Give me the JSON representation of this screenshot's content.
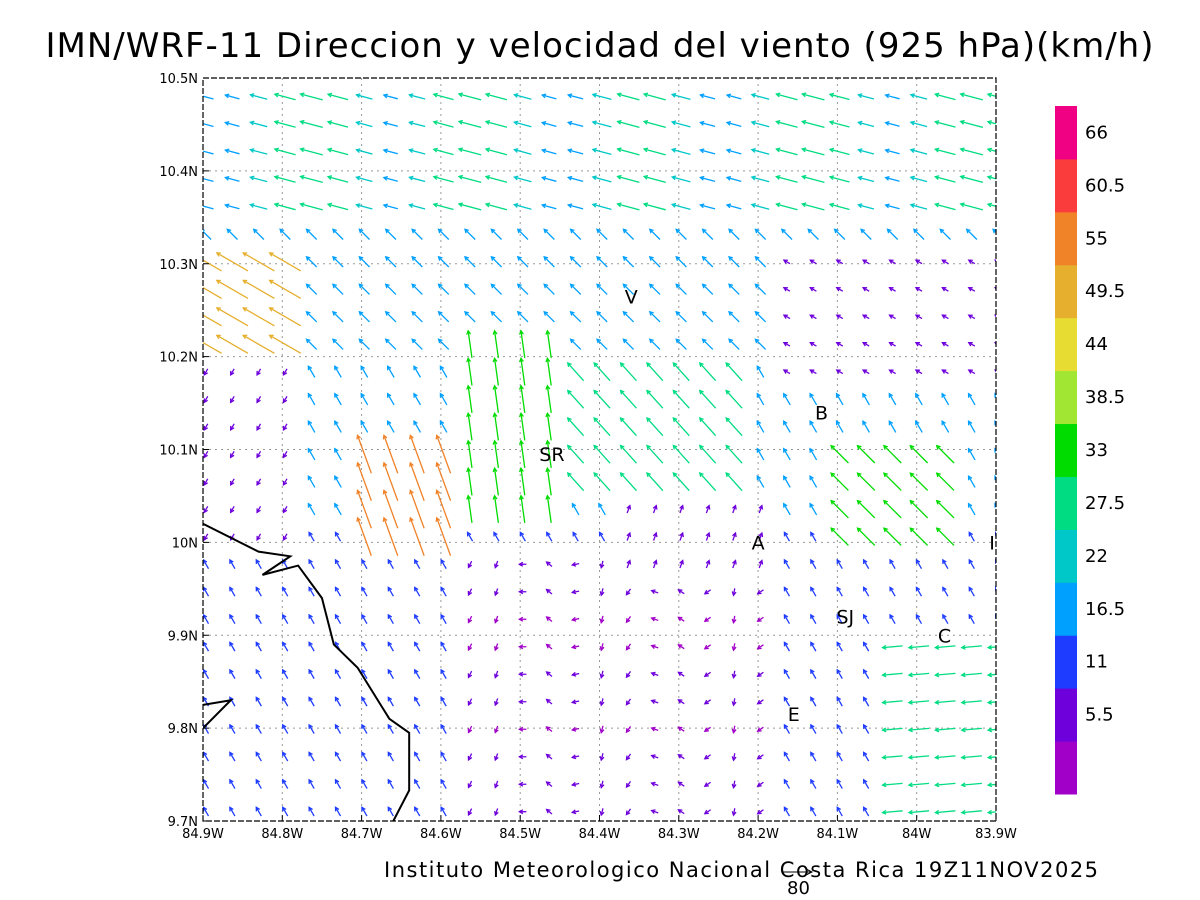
{
  "title": "IMN/WRF-11 Direccion y velocidad del viento (925 hPa)(km/h)",
  "credit": "Instituto Meteorologico Nacional Costa Rica 19Z11NOV2025",
  "reference_vector": {
    "label": "80",
    "speed_kmh": 80
  },
  "map": {
    "lon_range": [
      -84.9,
      -83.9
    ],
    "lat_range": [
      9.7,
      10.5
    ],
    "x_ticks": [
      "84.9W",
      "84.8W",
      "84.7W",
      "84.6W",
      "84.5W",
      "84.4W",
      "84.3W",
      "84.2W",
      "84.1W",
      "84W",
      "83.9W"
    ],
    "y_ticks": [
      "9.7N",
      "9.8N",
      "9.9N",
      "10N",
      "10.1N",
      "10.2N",
      "10.3N",
      "10.4N",
      "10.5N"
    ],
    "gridlines": "dotted",
    "coastline": [
      [
        -84.9,
        10.02
      ],
      [
        -84.83,
        9.99
      ],
      [
        -84.79,
        9.985
      ],
      [
        -84.825,
        9.965
      ],
      [
        -84.78,
        9.975
      ],
      [
        -84.75,
        9.94
      ],
      [
        -84.735,
        9.89
      ],
      [
        -84.705,
        9.865
      ],
      [
        -84.665,
        9.81
      ],
      [
        -84.64,
        9.795
      ],
      [
        -84.64,
        9.733
      ],
      [
        -84.66,
        9.7
      ]
    ],
    "coastline2": [
      [
        -84.9,
        9.825
      ],
      [
        -84.865,
        9.83
      ],
      [
        -84.9,
        9.8
      ]
    ],
    "places": [
      {
        "label": "V",
        "lon": -84.36,
        "lat": 10.265
      },
      {
        "label": "SR",
        "lon": -84.46,
        "lat": 10.095
      },
      {
        "label": "B",
        "lon": -84.12,
        "lat": 10.14
      },
      {
        "label": "A",
        "lon": -84.2,
        "lat": 10.0
      },
      {
        "label": "I",
        "lon": -83.905,
        "lat": 10.0
      },
      {
        "label": "SJ",
        "lon": -84.09,
        "lat": 9.92
      },
      {
        "label": "C",
        "lon": -83.965,
        "lat": 9.9
      },
      {
        "label": "E",
        "lon": -84.155,
        "lat": 9.815
      }
    ]
  },
  "legend": {
    "colors": [
      "#a000c8",
      "#6e00dc",
      "#1e3cff",
      "#00a0ff",
      "#00c8c8",
      "#00dc82",
      "#00dc00",
      "#a0e632",
      "#e6dc32",
      "#e6af2d",
      "#f08228",
      "#fa3c3c",
      "#f00082"
    ],
    "labels": [
      "5.5",
      "11",
      "16.5",
      "22",
      "27.5",
      "33",
      "38.5",
      "44",
      "49.5",
      "55",
      "60.5",
      "66"
    ]
  },
  "chart_data": {
    "type": "wind_vectors",
    "units": "km/h",
    "pressure_level": "925 hPa",
    "grid": {
      "lon_start": -84.9,
      "lon_step": 0.0333,
      "lon_count": 31,
      "lat_start": 9.7,
      "lat_step": 0.0296,
      "lat_count": 28
    },
    "prevailing_direction": "from northeast (arrows point southwest)",
    "zones": [
      {
        "lon": [
          -84.9,
          -84.8
        ],
        "lat": [
          10.2,
          10.32
        ],
        "speed": 50,
        "dir": "NE"
      },
      {
        "lon": [
          -84.72,
          -84.6
        ],
        "lat": [
          10.0,
          10.1
        ],
        "speed": 58,
        "dir": "NNE"
      },
      {
        "lon": [
          -84.6,
          -84.44
        ],
        "lat": [
          10.02,
          10.2
        ],
        "speed": 40,
        "dir": "N"
      },
      {
        "lon": [
          -84.9,
          -83.9
        ],
        "lat": [
          10.36,
          10.5
        ],
        "speed": 30,
        "dir": "ENE"
      },
      {
        "lon": [
          -84.6,
          -84.2
        ],
        "lat": [
          9.7,
          9.98
        ],
        "speed": 7,
        "dir": "variable"
      },
      {
        "lon": [
          -84.2,
          -83.9
        ],
        "lat": [
          10.2,
          10.32
        ],
        "speed": 8,
        "dir": "NE"
      },
      {
        "lon": [
          -84.06,
          -83.9
        ],
        "lat": [
          9.75,
          9.9
        ],
        "speed": 30,
        "dir": "E"
      }
    ]
  }
}
